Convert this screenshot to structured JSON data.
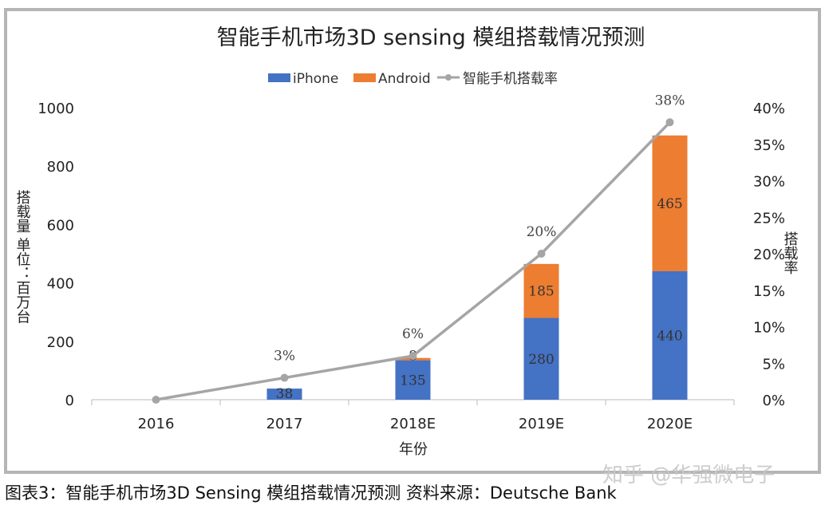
{
  "chart_data": {
    "type": "bar",
    "stacked": true,
    "title": "智能手机市场3D sensing  模组搭载情况预测",
    "xlabel": "年份",
    "ylabel": "搭载量 单位：百万台",
    "y2label": "搭载率",
    "categories": [
      "2016",
      "2017",
      "2018E",
      "2019E",
      "2020E"
    ],
    "ylim": [
      0,
      1000
    ],
    "yticks": [
      "0",
      "200",
      "400",
      "600",
      "800",
      "1000"
    ],
    "y2lim": [
      0,
      40
    ],
    "y2ticks": [
      "0%",
      "5%",
      "10%",
      "15%",
      "20%",
      "25%",
      "30%",
      "35%",
      "40%"
    ],
    "legend_position": "top",
    "series": [
      {
        "name": "iPhone",
        "type": "bar",
        "color": "#4472c4",
        "values": [
          0,
          38,
          135,
          280,
          440
        ],
        "labels": [
          "",
          "38",
          "135",
          "280",
          "440"
        ]
      },
      {
        "name": "Android",
        "type": "bar",
        "color": "#ed7d31",
        "values": [
          0,
          0,
          8,
          185,
          465
        ],
        "labels": [
          "",
          "",
          "8",
          "185",
          "465"
        ]
      },
      {
        "name": "智能手机搭载率",
        "type": "line",
        "axis": "right",
        "color": "#a5a5a5",
        "values": [
          0,
          3,
          6,
          20,
          38
        ],
        "labels": [
          "",
          "3%",
          "6%",
          "20%",
          "38%"
        ]
      }
    ]
  },
  "caption": "图表3：智能手机市场3D Sensing 模组搭载情况预测  资料来源：Deutsche Bank",
  "watermark": "知乎 @华强微电子"
}
